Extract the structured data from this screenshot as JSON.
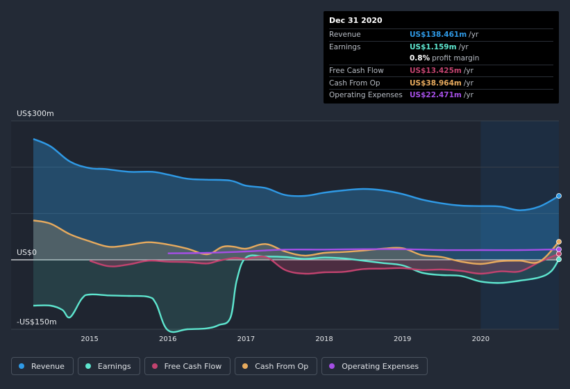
{
  "colors": {
    "revenue": "#2f9ae6",
    "earnings": "#5ee6cf",
    "fcf": "#c2436f",
    "cfo": "#e8ab5e",
    "opex": "#a54fe6",
    "background": "#232a36"
  },
  "tooltip": {
    "date": "Dec 31 2020",
    "rows": [
      {
        "name": "Revenue",
        "value": "US$138.461m",
        "unit": "/yr",
        "color": "#2f9ae6"
      },
      {
        "name": "Earnings",
        "value": "US$1.159m",
        "unit": "/yr",
        "color": "#5ee6cf"
      },
      {
        "name": "",
        "value": "0.8%",
        "unit": "profit margin",
        "color": "#ffffff"
      },
      {
        "name": "Free Cash Flow",
        "value": "US$13.425m",
        "unit": "/yr",
        "color": "#c2436f"
      },
      {
        "name": "Cash From Op",
        "value": "US$38.964m",
        "unit": "/yr",
        "color": "#e8ab5e"
      },
      {
        "name": "Operating Expenses",
        "value": "US$22.471m",
        "unit": "/yr",
        "color": "#a54fe6"
      }
    ]
  },
  "legend": [
    {
      "label": "Revenue",
      "color": "#2f9ae6"
    },
    {
      "label": "Earnings",
      "color": "#5ee6cf"
    },
    {
      "label": "Free Cash Flow",
      "color": "#c2436f"
    },
    {
      "label": "Cash From Op",
      "color": "#e8ab5e"
    },
    {
      "label": "Operating Expenses",
      "color": "#a54fe6"
    }
  ],
  "chart_data": {
    "type": "line",
    "title": "",
    "xlabel": "",
    "ylabel": "",
    "ylim": [
      -150,
      300
    ],
    "xlim": [
      2014.28,
      2021.0
    ],
    "y_tick_labels": [
      {
        "value": 300,
        "label": "US$300m"
      },
      {
        "value": 0,
        "label": "US$0"
      },
      {
        "value": -150,
        "label": "-US$150m"
      }
    ],
    "x_tick_labels": [
      {
        "value": 2015,
        "label": "2015"
      },
      {
        "value": 2016,
        "label": "2016"
      },
      {
        "value": 2017,
        "label": "2017"
      },
      {
        "value": 2018,
        "label": "2018"
      },
      {
        "value": 2019,
        "label": "2019"
      },
      {
        "value": 2020,
        "label": "2020"
      }
    ],
    "highlight_from": 2020.0,
    "series": [
      {
        "name": "Revenue",
        "key": "revenue",
        "filled": true,
        "x": [
          2014.28,
          2014.5,
          2014.75,
          2015.0,
          2015.2,
          2015.5,
          2015.8,
          2016.0,
          2016.25,
          2016.5,
          2016.8,
          2017.0,
          2017.25,
          2017.5,
          2017.75,
          2018.0,
          2018.25,
          2018.5,
          2018.75,
          2019.0,
          2019.25,
          2019.5,
          2019.75,
          2020.0,
          2020.25,
          2020.5,
          2020.75,
          2021.0
        ],
        "values": [
          261,
          245,
          212,
          198,
          196,
          190,
          190,
          184,
          175,
          173,
          171,
          160,
          155,
          140,
          138,
          145,
          150,
          153,
          150,
          142,
          130,
          122,
          117,
          116,
          115,
          107,
          115,
          138
        ]
      },
      {
        "name": "Earnings",
        "key": "earnings",
        "filled": true,
        "x": [
          2014.28,
          2014.5,
          2014.65,
          2014.75,
          2014.9,
          2015.0,
          2015.25,
          2015.5,
          2015.75,
          2015.85,
          2016.0,
          2016.25,
          2016.5,
          2016.65,
          2016.8,
          2016.88,
          2017.0,
          2017.25,
          2017.5,
          2017.75,
          2018.0,
          2018.25,
          2018.5,
          2018.75,
          2019.0,
          2019.25,
          2019.5,
          2019.75,
          2020.0,
          2020.25,
          2020.5,
          2020.75,
          2020.9,
          2021.0
        ],
        "values": [
          -99,
          -99,
          -108,
          -124,
          -84,
          -75,
          -77,
          -78,
          -80,
          -95,
          -152,
          -150,
          -148,
          -141,
          -125,
          -45,
          5,
          7,
          6,
          2,
          5,
          3,
          -2,
          -7,
          -12,
          -28,
          -33,
          -35,
          -47,
          -50,
          -45,
          -38,
          -25,
          1
        ]
      },
      {
        "name": "Free Cash Flow",
        "key": "fcf",
        "filled": true,
        "x": [
          2015.0,
          2015.25,
          2015.5,
          2015.75,
          2016.0,
          2016.25,
          2016.5,
          2016.65,
          2016.85,
          2017.0,
          2017.25,
          2017.5,
          2017.75,
          2018.0,
          2018.25,
          2018.5,
          2018.75,
          2019.0,
          2019.25,
          2019.5,
          2019.75,
          2020.0,
          2020.25,
          2020.5,
          2020.75,
          2021.0
        ],
        "values": [
          -2,
          -14,
          -10,
          -2,
          -4,
          -5,
          -8,
          -2,
          4,
          2,
          6,
          -22,
          -30,
          -27,
          -26,
          -20,
          -19,
          -18,
          -22,
          -21,
          -24,
          -30,
          -25,
          -25,
          -5,
          13
        ]
      },
      {
        "name": "Cash From Op",
        "key": "cfo",
        "filled": true,
        "x": [
          2014.28,
          2014.5,
          2014.75,
          2015.0,
          2015.25,
          2015.5,
          2015.75,
          2016.0,
          2016.25,
          2016.5,
          2016.7,
          2016.85,
          2017.0,
          2017.25,
          2017.5,
          2017.75,
          2018.0,
          2018.25,
          2018.5,
          2018.75,
          2019.0,
          2019.25,
          2019.5,
          2019.75,
          2020.0,
          2020.25,
          2020.5,
          2020.75,
          2021.0
        ],
        "values": [
          85,
          78,
          55,
          40,
          28,
          32,
          38,
          33,
          24,
          12,
          28,
          28,
          24,
          34,
          18,
          9,
          15,
          17,
          20,
          24,
          25,
          10,
          6,
          -4,
          -9,
          -3,
          -2,
          -4,
          39
        ]
      },
      {
        "name": "Operating Expenses",
        "key": "opex",
        "filled": false,
        "x": [
          2016.0,
          2016.5,
          2017.0,
          2017.5,
          2018.0,
          2018.5,
          2019.0,
          2019.5,
          2020.0,
          2020.5,
          2021.0
        ],
        "values": [
          14,
          15,
          18,
          22,
          22,
          23,
          23,
          21,
          21,
          21,
          22.5
        ]
      }
    ]
  }
}
